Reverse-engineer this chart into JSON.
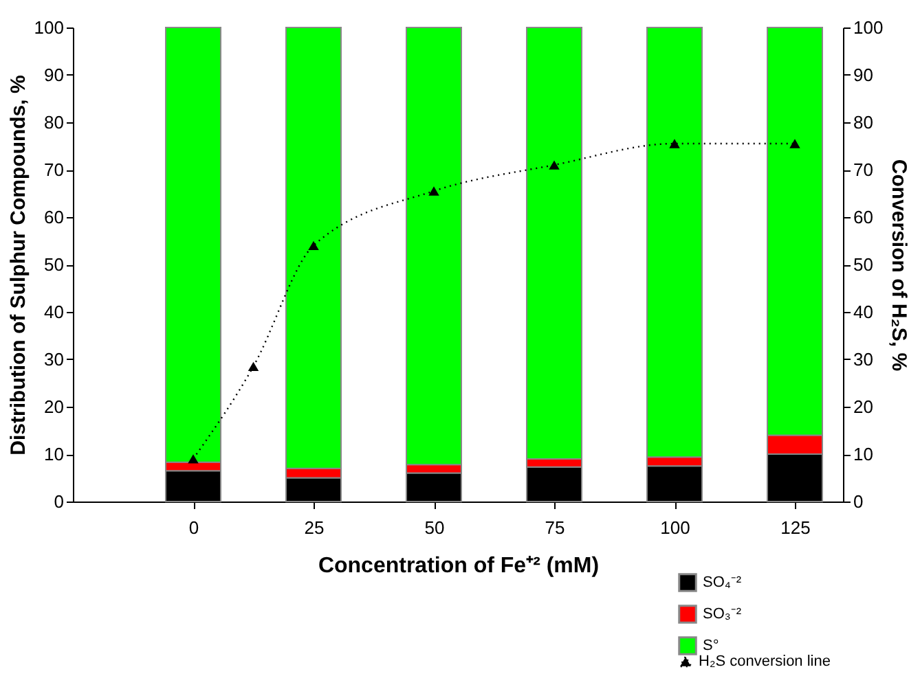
{
  "chart_data": {
    "type": "bar",
    "stacked": true,
    "xlabel": "Concentration of Fe⁺² (mM)",
    "ylabel": "Distribution of Sulphur Compounds, %",
    "y2label": "Conversion of H₂S, %",
    "x": [
      0,
      25,
      50,
      75,
      100,
      125
    ],
    "xlim": [
      -25,
      135
    ],
    "xticks": [
      0,
      25,
      50,
      75,
      100,
      125
    ],
    "ylim": [
      0,
      100
    ],
    "yticks": [
      0,
      10,
      20,
      30,
      40,
      50,
      60,
      70,
      80,
      90,
      100
    ],
    "y2lim": [
      0,
      100
    ],
    "y2ticks": [
      0,
      10,
      20,
      30,
      40,
      50,
      60,
      70,
      80,
      90,
      100
    ],
    "grid": false,
    "legend": "bottom right",
    "series": [
      {
        "name": "SO₄⁻²",
        "color": "#000000",
        "values": [
          6.5,
          5,
          6,
          7.3,
          7.5,
          10
        ]
      },
      {
        "name": "SO₃⁻²",
        "color": "#ff0000",
        "values": [
          1.8,
          2,
          1.8,
          1.7,
          1.9,
          4
        ]
      },
      {
        "name": "S°",
        "color": "#00ff00",
        "values": [
          91.7,
          93,
          92.2,
          91,
          90.6,
          86
        ]
      },
      {
        "name": "H₂S conversion line",
        "type": "line",
        "axis": "y2",
        "color": "#000000",
        "marker": "triangle",
        "line_style": "dotted",
        "x": [
          0,
          12.5,
          25,
          50,
          75,
          100,
          125
        ],
        "values": [
          9,
          28.5,
          54,
          65.5,
          71,
          75.5,
          75.5
        ]
      }
    ]
  }
}
